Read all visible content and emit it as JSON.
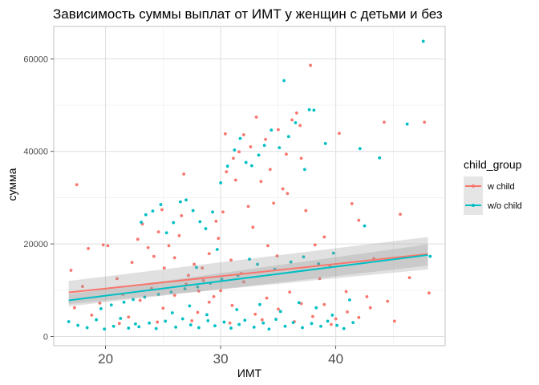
{
  "chart_data": {
    "type": "scatter",
    "title": "Зависимость суммы выплат от ИМТ у женщин с детьми и без",
    "xlabel": "ИМТ",
    "ylabel": "сумма",
    "xlim": [
      15.5,
      49.5
    ],
    "ylim": [
      -2000,
      67000
    ],
    "x_ticks": [
      20,
      30,
      40
    ],
    "y_ticks": [
      0,
      20000,
      40000,
      60000
    ],
    "x_tick_labels": [
      "20",
      "30",
      "40"
    ],
    "y_tick_labels": [
      "0",
      "20000",
      "40000",
      "60000"
    ],
    "grid": true,
    "legend": {
      "title": "child_group",
      "placement": "right",
      "entries": [
        {
          "label": "w child",
          "color": "#F8766D"
        },
        {
          "label": "w/o child",
          "color": "#00BFC4"
        }
      ]
    },
    "series": [
      {
        "name": "w child",
        "color": "#F8766D",
        "trend": {
          "x": [
            16.8,
            48
          ],
          "y": [
            9500,
            17800
          ],
          "ci_low": [
            7000,
            14500
          ],
          "ci_high": [
            12000,
            21500
          ]
        },
        "points": [
          [
            17.5,
            32800
          ],
          [
            17.0,
            14300
          ],
          [
            18.0,
            10800
          ],
          [
            18.5,
            19000
          ],
          [
            19.8,
            19800
          ],
          [
            20.2,
            19600
          ],
          [
            17.3,
            6200
          ],
          [
            18.8,
            4600
          ],
          [
            19.5,
            7200
          ],
          [
            21.0,
            12500
          ],
          [
            21.5,
            9100
          ],
          [
            22.3,
            16000
          ],
          [
            22.8,
            21000
          ],
          [
            23.2,
            24300
          ],
          [
            23.7,
            19200
          ],
          [
            24.2,
            17300
          ],
          [
            24.6,
            22600
          ],
          [
            25.1,
            14800
          ],
          [
            25.5,
            19600
          ],
          [
            26.0,
            17000
          ],
          [
            26.4,
            21800
          ],
          [
            26.8,
            35100
          ],
          [
            27.2,
            13200
          ],
          [
            27.7,
            15600
          ],
          [
            28.1,
            9800
          ],
          [
            28.5,
            12100
          ],
          [
            29.0,
            17900
          ],
          [
            29.4,
            8600
          ],
          [
            29.8,
            21200
          ],
          [
            30.2,
            26900
          ],
          [
            30.5,
            35600
          ],
          [
            30.9,
            16500
          ],
          [
            31.3,
            33800
          ],
          [
            31.6,
            39900
          ],
          [
            32.0,
            43600
          ],
          [
            32.4,
            28100
          ],
          [
            32.8,
            23600
          ],
          [
            33.1,
            47400
          ],
          [
            33.5,
            33500
          ],
          [
            33.9,
            42600
          ],
          [
            34.3,
            36100
          ],
          [
            34.6,
            28800
          ],
          [
            35.0,
            44700
          ],
          [
            35.4,
            31900
          ],
          [
            35.8,
            30900
          ],
          [
            36.2,
            46800
          ],
          [
            36.6,
            48300
          ],
          [
            37.0,
            38500
          ],
          [
            37.4,
            27200
          ],
          [
            37.8,
            58600
          ],
          [
            38.2,
            19800
          ],
          [
            38.6,
            12500
          ],
          [
            39.0,
            21500
          ],
          [
            39.5,
            15200
          ],
          [
            40.3,
            43900
          ],
          [
            40.9,
            9700
          ],
          [
            41.4,
            28700
          ],
          [
            42.0,
            25100
          ],
          [
            42.7,
            8600
          ],
          [
            43.3,
            16800
          ],
          [
            44.2,
            46300
          ],
          [
            45.6,
            26400
          ],
          [
            46.4,
            12700
          ],
          [
            47.7,
            46300
          ],
          [
            48.1,
            9400
          ],
          [
            22.0,
            4200
          ],
          [
            23.0,
            7800
          ],
          [
            24.0,
            10400
          ],
          [
            25.0,
            6100
          ],
          [
            26.0,
            8900
          ],
          [
            27.0,
            11300
          ],
          [
            28.0,
            5200
          ],
          [
            29.0,
            7400
          ],
          [
            30.0,
            9900
          ],
          [
            31.0,
            6700
          ],
          [
            32.0,
            11800
          ],
          [
            33.0,
            4800
          ],
          [
            34.0,
            8300
          ],
          [
            35.0,
            5900
          ],
          [
            36.0,
            9600
          ],
          [
            37.0,
            7100
          ],
          [
            38.0,
            4300
          ],
          [
            39.0,
            6900
          ],
          [
            40.0,
            3800
          ],
          [
            41.0,
            5300
          ],
          [
            42.0,
            4100
          ],
          [
            43.0,
            6200
          ],
          [
            44.5,
            7600
          ],
          [
            45.1,
            3300
          ],
          [
            21.2,
            2800
          ],
          [
            24.5,
            3100
          ],
          [
            27.5,
            3400
          ],
          [
            30.8,
            2900
          ],
          [
            33.6,
            3600
          ],
          [
            36.4,
            3200
          ],
          [
            39.6,
            2600
          ],
          [
            28.4,
            14800
          ],
          [
            31.8,
            13600
          ],
          [
            34.9,
            17400
          ],
          [
            29.6,
            24900
          ],
          [
            26.6,
            26100
          ],
          [
            24.9,
            27400
          ],
          [
            30.4,
            43800
          ],
          [
            31.1,
            38500
          ],
          [
            32.6,
            41000
          ],
          [
            36.9,
            45600
          ],
          [
            35.7,
            39400
          ],
          [
            34.1,
            19600
          ]
        ]
      },
      {
        "name": "w/o child",
        "color": "#00BFC4",
        "trend": {
          "x": [
            16.8,
            48
          ],
          "y": [
            7800,
            17600
          ],
          "ci_low": [
            6500,
            15300
          ],
          "ci_high": [
            9100,
            19900
          ]
        },
        "points": [
          [
            16.8,
            3200
          ],
          [
            17.6,
            2400
          ],
          [
            18.4,
            1900
          ],
          [
            19.2,
            3600
          ],
          [
            19.9,
            1600
          ],
          [
            20.7,
            2200
          ],
          [
            21.3,
            3900
          ],
          [
            22.0,
            1800
          ],
          [
            22.6,
            2700
          ],
          [
            23.1,
            24700
          ],
          [
            23.5,
            26300
          ],
          [
            24.1,
            27100
          ],
          [
            24.8,
            28500
          ],
          [
            25.3,
            22400
          ],
          [
            25.9,
            24600
          ],
          [
            26.5,
            29100
          ],
          [
            27.0,
            29500
          ],
          [
            27.6,
            27200
          ],
          [
            28.2,
            24800
          ],
          [
            28.7,
            23300
          ],
          [
            29.3,
            26900
          ],
          [
            30.0,
            33200
          ],
          [
            30.6,
            36800
          ],
          [
            31.2,
            40300
          ],
          [
            31.7,
            42800
          ],
          [
            32.2,
            37600
          ],
          [
            32.7,
            36900
          ],
          [
            33.3,
            39200
          ],
          [
            33.8,
            41300
          ],
          [
            34.4,
            44600
          ],
          [
            35.1,
            40800
          ],
          [
            35.5,
            55300
          ],
          [
            35.9,
            43200
          ],
          [
            36.5,
            46200
          ],
          [
            37.3,
            36100
          ],
          [
            37.7,
            49000
          ],
          [
            38.1,
            48900
          ],
          [
            39.1,
            41700
          ],
          [
            42.1,
            40600
          ],
          [
            43.8,
            38600
          ],
          [
            46.2,
            45900
          ],
          [
            47.6,
            63800
          ],
          [
            48.2,
            17300
          ],
          [
            42.5,
            23900
          ],
          [
            39.8,
            18000
          ],
          [
            38.5,
            15700
          ],
          [
            37.2,
            17200
          ],
          [
            36.1,
            16100
          ],
          [
            34.7,
            14500
          ],
          [
            33.2,
            15600
          ],
          [
            31.5,
            13200
          ],
          [
            30.1,
            12400
          ],
          [
            29.1,
            11500
          ],
          [
            28.0,
            10700
          ],
          [
            26.9,
            10300
          ],
          [
            25.7,
            9600
          ],
          [
            24.6,
            9100
          ],
          [
            23.4,
            8500
          ],
          [
            22.4,
            8000
          ],
          [
            21.6,
            7400
          ],
          [
            20.5,
            6800
          ],
          [
            19.6,
            6000
          ],
          [
            22.9,
            2100
          ],
          [
            23.8,
            2900
          ],
          [
            24.4,
            1700
          ],
          [
            25.2,
            3300
          ],
          [
            26.1,
            2000
          ],
          [
            26.7,
            3800
          ],
          [
            27.4,
            2500
          ],
          [
            28.1,
            1900
          ],
          [
            28.9,
            3400
          ],
          [
            29.5,
            2300
          ],
          [
            30.3,
            3100
          ],
          [
            30.9,
            1800
          ],
          [
            31.6,
            2600
          ],
          [
            32.1,
            3500
          ],
          [
            32.9,
            2000
          ],
          [
            33.7,
            2900
          ],
          [
            34.2,
            1600
          ],
          [
            34.8,
            3700
          ],
          [
            35.6,
            2200
          ],
          [
            36.3,
            3000
          ],
          [
            37.1,
            1900
          ],
          [
            37.9,
            2800
          ],
          [
            38.7,
            2200
          ],
          [
            39.3,
            3300
          ],
          [
            40.1,
            2400
          ],
          [
            40.7,
            1700
          ],
          [
            41.5,
            3000
          ],
          [
            25.8,
            5100
          ],
          [
            27.3,
            6600
          ],
          [
            28.8,
            4700
          ],
          [
            31.4,
            5800
          ],
          [
            33.4,
            6900
          ],
          [
            35.2,
            5400
          ],
          [
            36.8,
            7300
          ],
          [
            38.3,
            6200
          ],
          [
            39.7,
            4600
          ],
          [
            41.2,
            7900
          ],
          [
            27.9,
            14900
          ],
          [
            29.7,
            18800
          ],
          [
            32.5,
            16700
          ]
        ]
      }
    ]
  }
}
